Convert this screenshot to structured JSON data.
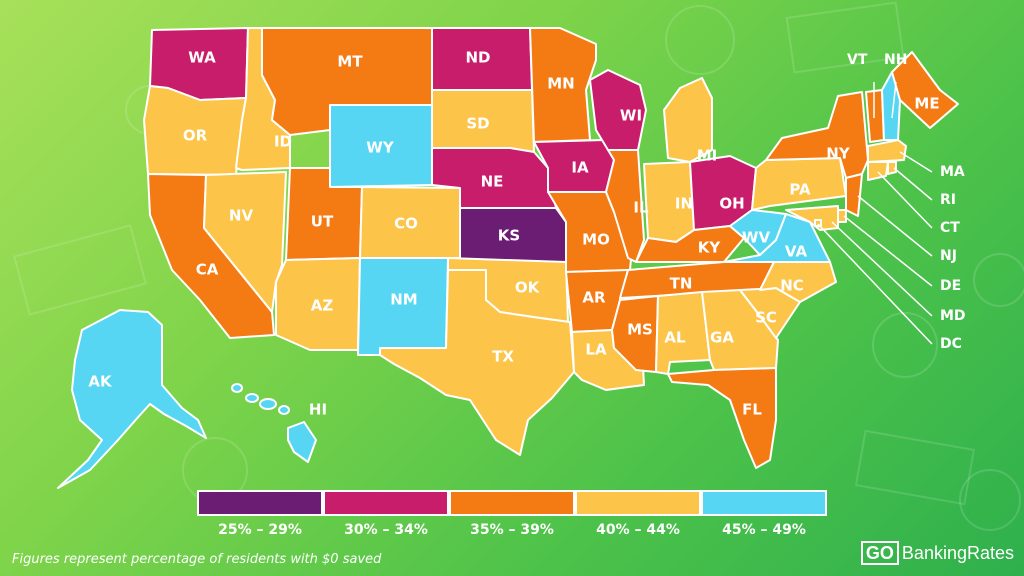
{
  "legend": {
    "bins": [
      {
        "label": "25% – 29%",
        "color": "#6b1d73"
      },
      {
        "label": "30% – 34%",
        "color": "#c81d6b"
      },
      {
        "label": "35% – 39%",
        "color": "#f47a13"
      },
      {
        "label": "40% – 44%",
        "color": "#fcc54a"
      },
      {
        "label": "45% – 49%",
        "color": "#56d6f2"
      }
    ]
  },
  "footnote": "Figures represent percentage of residents with $0 saved",
  "brand": {
    "go": "GO",
    "name": "BankingRates"
  },
  "states": {
    "WA": 1,
    "OR": 3,
    "CA": 2,
    "ID": 3,
    "NV": 3,
    "MT": 2,
    "WY": 4,
    "UT": 2,
    "AZ": 3,
    "CO": 3,
    "NM": 4,
    "ND": 1,
    "SD": 3,
    "NE": 1,
    "KS": 0,
    "OK": 3,
    "TX": 3,
    "MN": 2,
    "IA": 1,
    "MO": 2,
    "AR": 2,
    "LA": 3,
    "WI": 1,
    "IL": 2,
    "MS": 2,
    "MI": 3,
    "IN": 3,
    "KY": 2,
    "TN": 2,
    "AL": 3,
    "OH": 1,
    "GA": 3,
    "FL": 2,
    "SC": 3,
    "NC": 3,
    "WV": 4,
    "VA": 4,
    "PA": 3,
    "NY": 2,
    "ME": 2,
    "VT": 2,
    "NH": 4,
    "MA": 3,
    "RI": 3,
    "CT": 3,
    "NJ": 2,
    "DE": 3,
    "MD": 3,
    "DC": 3,
    "AK": 4,
    "HI": 4
  }
}
